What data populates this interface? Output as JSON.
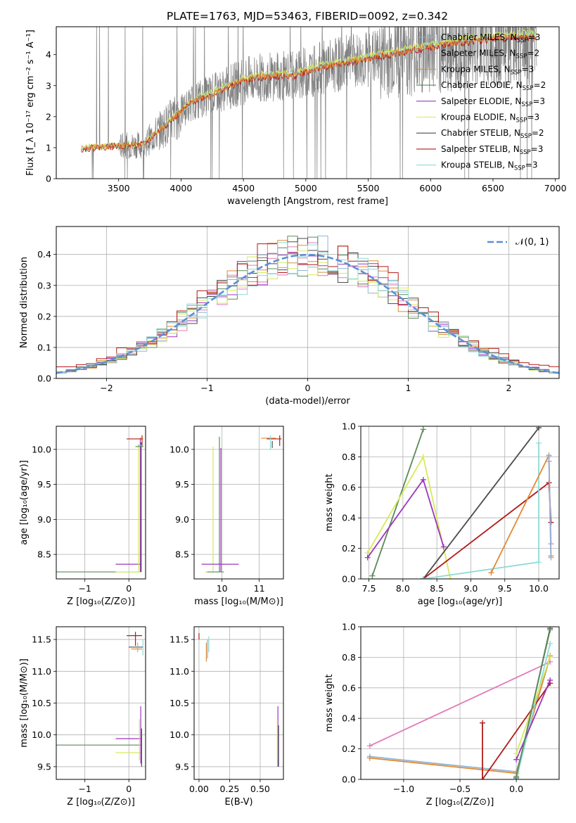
{
  "title": "PLATE=1763, MJD=53463, FIBERID=0092, z=0.342",
  "colors": {
    "chabrier_miles": "#8fb4d8",
    "salpeter_miles": "#e07bb8",
    "kroupa_miles": "#e08a35",
    "chabrier_elodie": "#5a8a5a",
    "salpeter_elodie": "#9b35bd",
    "kroupa_elodie": "#d6ea5a",
    "chabrier_stelib": "#4a4a4a",
    "salpeter_stelib": "#b21a1a",
    "kroupa_stelib": "#8fdbd8",
    "data": "#808080",
    "normal": "#5b8fd6"
  },
  "chart_data": [
    {
      "type": "line",
      "id": "spectrum",
      "xlabel": "wavelength [Angstrom, rest frame]",
      "ylabel": "Flux [f_λ 10⁻¹⁷ erg cm⁻² s⁻¹ A⁻¹]",
      "xlim": [
        3000,
        7030
      ],
      "ylim": [
        0,
        4.9
      ],
      "xticks": [
        "3500",
        "4000",
        "4500",
        "5000",
        "5500",
        "6000",
        "6500",
        "7000"
      ],
      "yticks": [
        "0",
        "1",
        "2",
        "3",
        "4"
      ],
      "legend": [
        "Chabrier MILES, N_SSP=3",
        "Salpeter MILES, N_SSP=2",
        "Kroupa MILES, N_SSP=3",
        "Chabrier ELODIE, N_SSP=2",
        "Salpeter ELODIE, N_SSP=3",
        "Kroupa ELODIE, N_SSP=3",
        "Chabrier STELIB, N_SSP=2",
        "Salpeter STELIB, N_SSP=3",
        "Kroupa STELIB, N_SSP=3"
      ],
      "legend_position": "right",
      "data_range": [
        3200,
        6850
      ],
      "continuum": [
        [
          3200,
          0.95
        ],
        [
          3300,
          1.0
        ],
        [
          3500,
          1.05
        ],
        [
          3700,
          1.1
        ],
        [
          3900,
          1.8
        ],
        [
          4100,
          2.5
        ],
        [
          4300,
          2.8
        ],
        [
          4500,
          3.15
        ],
        [
          4700,
          3.3
        ],
        [
          4900,
          3.3
        ],
        [
          5100,
          3.55
        ],
        [
          5300,
          3.7
        ],
        [
          5500,
          3.85
        ],
        [
          5700,
          4.0
        ],
        [
          5900,
          4.15
        ],
        [
          6100,
          4.3
        ],
        [
          6300,
          4.4
        ],
        [
          6500,
          4.5
        ],
        [
          6700,
          4.55
        ],
        [
          6850,
          4.55
        ]
      ]
    },
    {
      "type": "line",
      "id": "residuals",
      "xlabel": "(data-model)/error",
      "ylabel": "Normed distribution",
      "xlim": [
        -2.5,
        2.5
      ],
      "ylim": [
        0,
        0.49
      ],
      "xticks": [
        "−2",
        "−1",
        "0",
        "1",
        "2"
      ],
      "yticks": [
        "0.0",
        "0.1",
        "0.2",
        "0.3",
        "0.4"
      ],
      "legend": [
        "𝒩(0, 1)"
      ],
      "legend_position": "top-right"
    },
    {
      "type": "scatter",
      "id": "age_vs_z",
      "xlabel": "Z [log₁₀(Z/Z⊙)]",
      "ylabel": "age  [log₁₀(age/yr)]",
      "xlim": [
        -1.65,
        0.38
      ],
      "ylim": [
        8.15,
        10.33
      ],
      "xticks": [
        "−1",
        "0"
      ],
      "yticks": [
        "8.5",
        "9.0",
        "9.5",
        "10.0"
      ]
    },
    {
      "type": "scatter",
      "id": "age_vs_mass",
      "xlabel": "mass [log₁₀(M/M⊙)]",
      "xlim": [
        9.25,
        11.65
      ],
      "ylim": [
        8.15,
        10.33
      ],
      "xticks": [
        "10",
        "11"
      ],
      "yticks": [
        "8.5",
        "9.0",
        "9.5",
        "10.0"
      ]
    },
    {
      "type": "line",
      "id": "mw_vs_age",
      "xlabel": "age  [log₁₀(age/yr)]",
      "ylabel": "mass weight",
      "xlim": [
        7.38,
        10.3
      ],
      "ylim": [
        0,
        1.0
      ],
      "xticks": [
        "7.5",
        "8.0",
        "8.5",
        "9.0",
        "9.5",
        "10.0"
      ],
      "yticks": [
        "0.0",
        "0.2",
        "0.4",
        "0.6",
        "0.8",
        "1.0"
      ],
      "series": [
        {
          "key": "chabrier_elodie",
          "points": [
            [
              7.55,
              0.02
            ],
            [
              8.3,
              0.98
            ]
          ]
        },
        {
          "key": "kroupa_elodie",
          "points": [
            [
              7.48,
              0.17
            ],
            [
              8.3,
              0.8
            ],
            [
              8.7,
              0.0
            ]
          ]
        },
        {
          "key": "salpeter_elodie",
          "points": [
            [
              7.48,
              0.14
            ],
            [
              8.3,
              0.65
            ],
            [
              8.6,
              0.21
            ]
          ]
        },
        {
          "key": "chabrier_stelib",
          "points": [
            [
              8.3,
              0.0
            ],
            [
              10.0,
              0.99
            ]
          ]
        },
        {
          "key": "salpeter_stelib",
          "points": [
            [
              8.3,
              0.0
            ],
            [
              10.15,
              0.63
            ],
            [
              10.18,
              0.37
            ]
          ]
        },
        {
          "key": "kroupa_stelib",
          "points": [
            [
              8.3,
              0.0
            ],
            [
              10.0,
              0.11
            ],
            [
              10.0,
              0.89
            ]
          ]
        },
        {
          "key": "kroupa_miles",
          "points": [
            [
              9.3,
              0.04
            ],
            [
              10.15,
              0.81
            ],
            [
              10.18,
              0.15
            ]
          ]
        },
        {
          "key": "salpeter_miles",
          "points": [
            [
              10.15,
              0.77
            ],
            [
              10.18,
              0.23
            ]
          ]
        },
        {
          "key": "chabrier_miles",
          "points": [
            [
              10.15,
              0.8
            ],
            [
              10.18,
              0.14
            ]
          ]
        }
      ]
    },
    {
      "type": "scatter",
      "id": "mass_vs_z",
      "xlabel": "Z [log₁₀(Z/Z⊙)]",
      "ylabel": "mass [log₁₀(M/M⊙)]",
      "xlim": [
        -1.65,
        0.38
      ],
      "ylim": [
        9.3,
        11.7
      ],
      "xticks": [
        "−1",
        "0"
      ],
      "yticks": [
        "9.5",
        "10.0",
        "10.5",
        "11.0",
        "11.5"
      ]
    },
    {
      "type": "scatter",
      "id": "mass_vs_ebv",
      "xlabel": "E(B-V)",
      "xlim": [
        -0.04,
        0.69
      ],
      "ylim": [
        9.3,
        11.7
      ],
      "xticks": [
        "0.00",
        "0.25",
        "0.50"
      ],
      "yticks": [
        "9.5",
        "10.0",
        "10.5",
        "11.0",
        "11.5"
      ]
    },
    {
      "type": "line",
      "id": "mw_vs_z",
      "xlabel": "Z [log₁₀(Z/Z⊙)]",
      "ylabel": "mass weight",
      "xlim": [
        -1.38,
        0.38
      ],
      "ylim": [
        0,
        1.0
      ],
      "xticks": [
        "−1.0",
        "−0.5",
        "0.0"
      ],
      "yticks": [
        "0.0",
        "0.2",
        "0.4",
        "0.6",
        "0.8",
        "1.0"
      ],
      "series": [
        {
          "key": "salpeter_miles",
          "points": [
            [
              -1.3,
              0.22
            ],
            [
              0.3,
              0.77
            ]
          ]
        },
        {
          "key": "chabrier_miles",
          "points": [
            [
              -1.3,
              0.15
            ],
            [
              0.0,
              0.05
            ],
            [
              0.3,
              0.8
            ]
          ]
        },
        {
          "key": "kroupa_miles",
          "points": [
            [
              -1.3,
              0.14
            ],
            [
              0.0,
              0.04
            ],
            [
              0.3,
              0.81
            ]
          ]
        },
        {
          "key": "salpeter_stelib",
          "points": [
            [
              -0.3,
              0.37
            ],
            [
              -0.3,
              0.0
            ],
            [
              0.3,
              0.63
            ]
          ]
        },
        {
          "key": "chabrier_stelib",
          "points": [
            [
              0.0,
              0.01
            ],
            [
              0.3,
              0.99
            ]
          ]
        },
        {
          "key": "kroupa_stelib",
          "points": [
            [
              0.0,
              0.0
            ],
            [
              0.3,
              0.89
            ]
          ]
        },
        {
          "key": "salpeter_elodie",
          "points": [
            [
              0.0,
              0.13
            ],
            [
              0.3,
              0.65
            ]
          ]
        },
        {
          "key": "kroupa_elodie",
          "points": [
            [
              0.0,
              0.17
            ],
            [
              0.3,
              0.8
            ]
          ]
        },
        {
          "key": "chabrier_elodie",
          "points": [
            [
              0.0,
              0.02
            ],
            [
              0.3,
              0.98
            ]
          ]
        }
      ]
    }
  ]
}
